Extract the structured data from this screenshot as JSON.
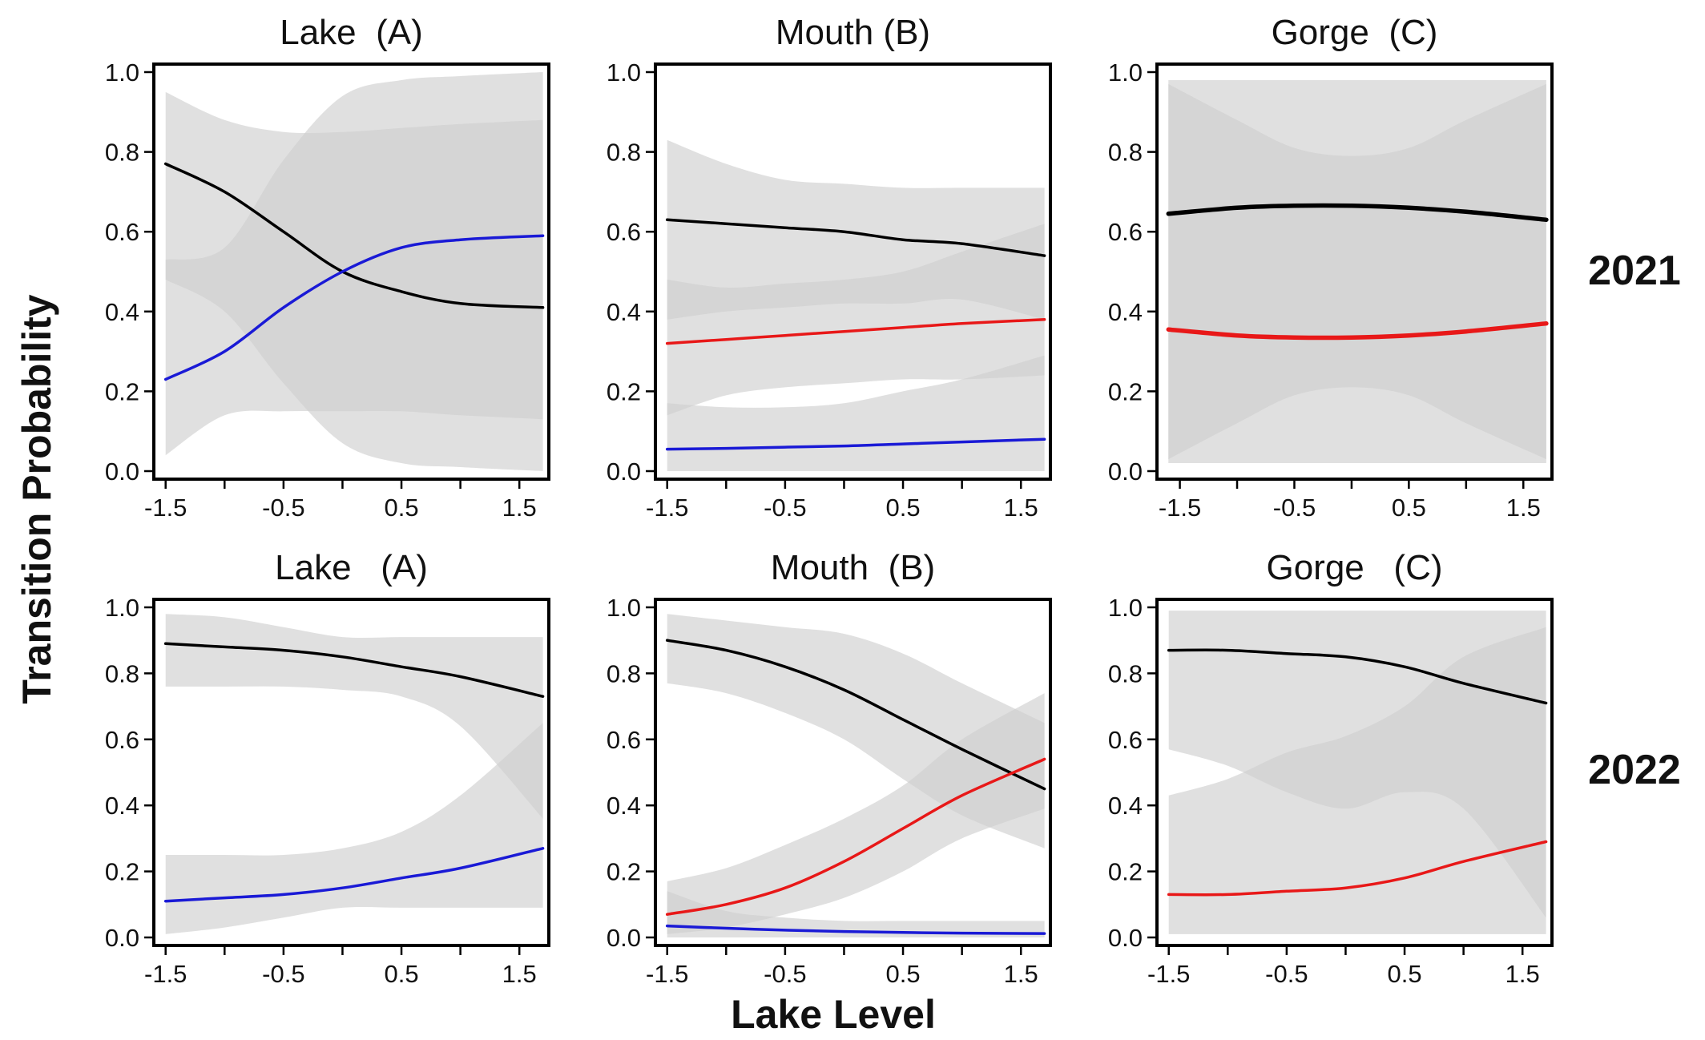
{
  "figure": {
    "ylabel": "Transition Probability",
    "xlabel": "Lake Level",
    "row_labels": [
      "2021",
      "2022"
    ]
  },
  "colors": {
    "band": "#cfcfcf",
    "band_opacity": 0.65,
    "black": "#000000",
    "blue": "#1a1ad6",
    "red": "#e81818"
  },
  "chart_data": [
    {
      "type": "line",
      "title": "Lake  (A)",
      "row": "2021",
      "xlim": [
        -1.6,
        1.75
      ],
      "ylim": [
        0,
        1
      ],
      "xticks": [
        -1.5,
        -0.5,
        0.5,
        1.5
      ],
      "xtick_labels": [
        "-1.5",
        "-0.5",
        "0.5",
        "1.5"
      ],
      "yticks": [
        0,
        0.2,
        0.4,
        0.6,
        0.8,
        1.0
      ],
      "ytick_labels": [
        "0.0",
        "0.2",
        "0.4",
        "0.6",
        "0.8",
        "1.0"
      ],
      "x": [
        -1.5,
        -1.0,
        -0.5,
        0.0,
        0.5,
        1.0,
        1.7
      ],
      "series": [
        {
          "color": "black",
          "values": [
            0.77,
            0.7,
            0.6,
            0.5,
            0.45,
            0.42,
            0.41
          ],
          "lower": [
            0.04,
            0.14,
            0.15,
            0.15,
            0.15,
            0.14,
            0.13
          ],
          "upper": [
            0.95,
            0.88,
            0.85,
            0.85,
            0.86,
            0.87,
            0.88
          ]
        },
        {
          "color": "blue",
          "values": [
            0.23,
            0.3,
            0.41,
            0.5,
            0.56,
            0.58,
            0.59
          ],
          "lower": [
            0.48,
            0.4,
            0.22,
            0.07,
            0.02,
            0.01,
            0.0
          ],
          "upper": [
            0.53,
            0.56,
            0.78,
            0.94,
            0.98,
            0.99,
            1.0
          ]
        }
      ]
    },
    {
      "type": "line",
      "title": "Mouth (B)",
      "row": "2021",
      "xlim": [
        -1.6,
        1.75
      ],
      "ylim": [
        0,
        1
      ],
      "xticks": [
        -1.5,
        -0.5,
        0.5,
        1.5
      ],
      "xtick_labels": [
        "-1.5",
        "-0.5",
        "0.5",
        "1.5"
      ],
      "yticks": [
        0,
        0.2,
        0.4,
        0.6,
        0.8,
        1.0
      ],
      "ytick_labels": [
        "0.0",
        "0.2",
        "0.4",
        "0.6",
        "0.8",
        "1.0"
      ],
      "x": [
        -1.5,
        -1.0,
        -0.5,
        0.0,
        0.5,
        1.0,
        1.7
      ],
      "series": [
        {
          "color": "black",
          "values": [
            0.63,
            0.62,
            0.61,
            0.6,
            0.58,
            0.57,
            0.54
          ],
          "lower": [
            0.38,
            0.4,
            0.41,
            0.42,
            0.42,
            0.43,
            0.38
          ],
          "upper": [
            0.83,
            0.77,
            0.73,
            0.72,
            0.71,
            0.71,
            0.71
          ]
        },
        {
          "color": "red",
          "values": [
            0.32,
            0.33,
            0.34,
            0.35,
            0.36,
            0.37,
            0.38
          ],
          "lower": [
            0.14,
            0.19,
            0.21,
            0.22,
            0.23,
            0.23,
            0.24
          ],
          "upper": [
            0.48,
            0.46,
            0.47,
            0.48,
            0.5,
            0.55,
            0.62
          ]
        },
        {
          "color": "blue",
          "values": [
            0.055,
            0.057,
            0.06,
            0.063,
            0.068,
            0.073,
            0.08
          ],
          "lower": [
            0.0,
            0.0,
            0.0,
            0.0,
            0.0,
            0.0,
            0.0
          ],
          "upper": [
            0.17,
            0.16,
            0.16,
            0.17,
            0.2,
            0.23,
            0.29
          ]
        }
      ]
    },
    {
      "type": "line",
      "title": "Gorge  (C)",
      "row": "2021",
      "xlim": [
        -1.7,
        1.75
      ],
      "ylim": [
        0,
        1
      ],
      "xticks": [
        -1.5,
        -0.5,
        0.5,
        1.5
      ],
      "xtick_labels": [
        "-1.5",
        "-0.5",
        "0.5",
        "1.5"
      ],
      "yticks": [
        0,
        0.2,
        0.4,
        0.6,
        0.8,
        1.0
      ],
      "ytick_labels": [
        "0.0",
        "0.2",
        "0.4",
        "0.6",
        "0.8",
        "1.0"
      ],
      "x": [
        -1.6,
        -1.0,
        -0.5,
        0.0,
        0.5,
        1.0,
        1.7
      ],
      "series": [
        {
          "color": "black",
          "values": [
            0.645,
            0.66,
            0.665,
            0.665,
            0.66,
            0.65,
            0.63
          ],
          "lower": [
            0.03,
            0.12,
            0.19,
            0.21,
            0.19,
            0.12,
            0.03
          ],
          "upper": [
            0.97,
            0.88,
            0.81,
            0.79,
            0.81,
            0.88,
            0.97
          ]
        },
        {
          "color": "red",
          "values": [
            0.355,
            0.34,
            0.335,
            0.335,
            0.34,
            0.35,
            0.37
          ],
          "lower": [
            0.02,
            0.02,
            0.02,
            0.02,
            0.02,
            0.02,
            0.02
          ],
          "upper": [
            0.98,
            0.98,
            0.98,
            0.98,
            0.98,
            0.98,
            0.98
          ]
        }
      ]
    },
    {
      "type": "line",
      "title": "Lake   (A)",
      "row": "2022",
      "xlim": [
        -1.6,
        1.75
      ],
      "ylim": [
        0,
        1
      ],
      "xticks": [
        -1.5,
        -0.5,
        0.5,
        1.5
      ],
      "xtick_labels": [
        "-1.5",
        "-0.5",
        "0.5",
        "1.5"
      ],
      "yticks": [
        0,
        0.2,
        0.4,
        0.6,
        0.8,
        1.0
      ],
      "ytick_labels": [
        "0.0",
        "0.2",
        "0.4",
        "0.6",
        "0.8",
        "1.0"
      ],
      "x": [
        -1.5,
        -1.0,
        -0.5,
        0.0,
        0.5,
        1.0,
        1.7
      ],
      "series": [
        {
          "color": "black",
          "values": [
            0.89,
            0.88,
            0.87,
            0.85,
            0.82,
            0.79,
            0.73
          ],
          "lower": [
            0.76,
            0.76,
            0.76,
            0.75,
            0.73,
            0.64,
            0.36
          ],
          "upper": [
            0.98,
            0.97,
            0.94,
            0.91,
            0.91,
            0.91,
            0.91
          ]
        },
        {
          "color": "blue",
          "values": [
            0.11,
            0.12,
            0.13,
            0.15,
            0.18,
            0.21,
            0.27
          ],
          "lower": [
            0.01,
            0.03,
            0.06,
            0.09,
            0.09,
            0.09,
            0.09
          ],
          "upper": [
            0.25,
            0.25,
            0.25,
            0.27,
            0.32,
            0.43,
            0.65
          ]
        }
      ]
    },
    {
      "type": "line",
      "title": "Mouth  (B)",
      "row": "2022",
      "xlim": [
        -1.6,
        1.75
      ],
      "ylim": [
        0,
        1
      ],
      "xticks": [
        -1.5,
        -0.5,
        0.5,
        1.5
      ],
      "xtick_labels": [
        "-1.5",
        "-0.5",
        "0.5",
        "1.5"
      ],
      "yticks": [
        0,
        0.2,
        0.4,
        0.6,
        0.8,
        1.0
      ],
      "ytick_labels": [
        "0.0",
        "0.2",
        "0.4",
        "0.6",
        "0.8",
        "1.0"
      ],
      "x": [
        -1.5,
        -1.0,
        -0.5,
        0.0,
        0.5,
        1.0,
        1.7
      ],
      "series": [
        {
          "color": "black",
          "values": [
            0.9,
            0.87,
            0.82,
            0.75,
            0.66,
            0.57,
            0.45
          ],
          "lower": [
            0.77,
            0.74,
            0.68,
            0.6,
            0.48,
            0.37,
            0.27
          ],
          "upper": [
            0.98,
            0.96,
            0.94,
            0.92,
            0.86,
            0.77,
            0.65
          ]
        },
        {
          "color": "red",
          "values": [
            0.07,
            0.1,
            0.15,
            0.23,
            0.33,
            0.43,
            0.54
          ],
          "lower": [
            0.01,
            0.03,
            0.07,
            0.12,
            0.2,
            0.3,
            0.39
          ],
          "upper": [
            0.17,
            0.21,
            0.28,
            0.36,
            0.46,
            0.6,
            0.74
          ]
        },
        {
          "color": "blue",
          "values": [
            0.035,
            0.028,
            0.022,
            0.018,
            0.015,
            0.013,
            0.012
          ],
          "lower": [
            0.0,
            0.0,
            0.0,
            0.0,
            0.0,
            0.0,
            0.0
          ],
          "upper": [
            0.14,
            0.08,
            0.06,
            0.05,
            0.05,
            0.05,
            0.05
          ]
        }
      ]
    },
    {
      "type": "line",
      "title": "Gorge   (C)",
      "row": "2022",
      "xlim": [
        -1.6,
        1.75
      ],
      "ylim": [
        0,
        1
      ],
      "xticks": [
        -1.5,
        -0.5,
        0.5,
        1.5
      ],
      "xtick_labels": [
        "-1.5",
        "-0.5",
        "0.5",
        "1.5"
      ],
      "yticks": [
        0,
        0.2,
        0.4,
        0.6,
        0.8,
        1.0
      ],
      "ytick_labels": [
        "0.0",
        "0.2",
        "0.4",
        "0.6",
        "0.8",
        "1.0"
      ],
      "x": [
        -1.5,
        -1.0,
        -0.5,
        0.0,
        0.5,
        1.0,
        1.7
      ],
      "series": [
        {
          "color": "black",
          "values": [
            0.87,
            0.87,
            0.86,
            0.85,
            0.82,
            0.77,
            0.71
          ],
          "lower": [
            0.57,
            0.52,
            0.44,
            0.39,
            0.44,
            0.39,
            0.06
          ],
          "upper": [
            0.99,
            0.99,
            0.99,
            0.99,
            0.99,
            0.99,
            0.99
          ]
        },
        {
          "color": "red",
          "values": [
            0.13,
            0.13,
            0.14,
            0.15,
            0.18,
            0.23,
            0.29
          ],
          "lower": [
            0.01,
            0.01,
            0.01,
            0.01,
            0.01,
            0.01,
            0.01
          ],
          "upper": [
            0.43,
            0.48,
            0.56,
            0.61,
            0.7,
            0.85,
            0.94
          ]
        }
      ]
    }
  ]
}
